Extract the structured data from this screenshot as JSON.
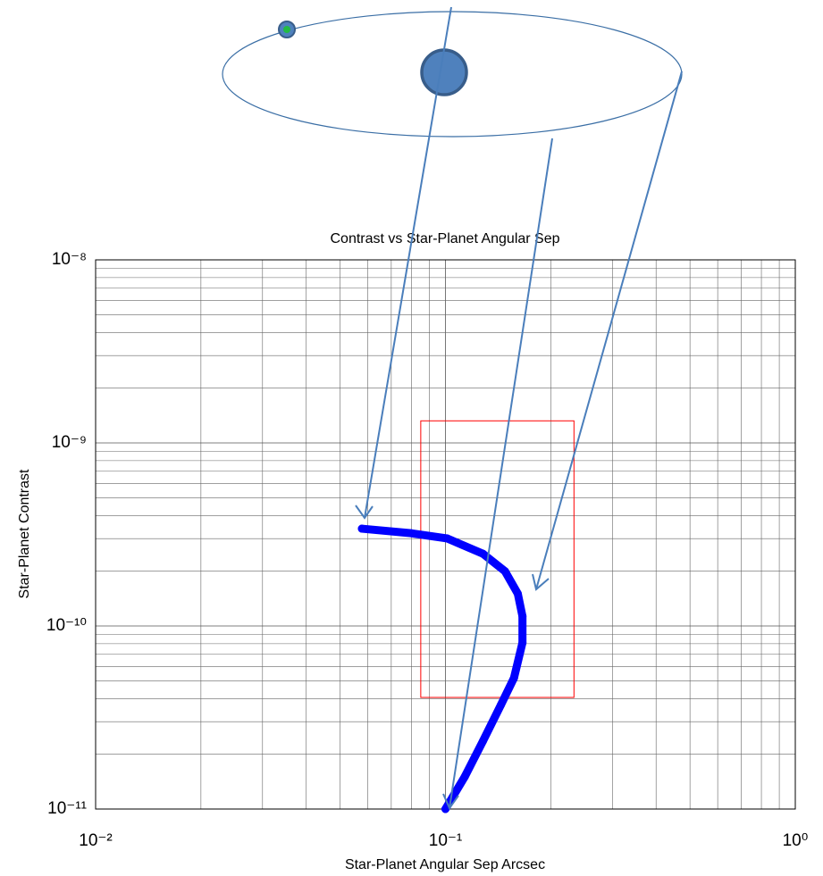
{
  "chart_data": {
    "type": "scatter",
    "title": "Contrast vs Star-Planet Angular Sep",
    "x_label": "Star-Planet Angular Sep Arcsec",
    "y_label": "Star-Planet Contrast",
    "xscale": "log",
    "yscale": "log",
    "xlim": [
      0.01,
      1
    ],
    "ylim": [
      1e-11,
      1e-08
    ],
    "xticks": [
      {
        "value": 0.01,
        "label": "10⁻²"
      },
      {
        "value": 0.1,
        "label": "10⁻¹"
      },
      {
        "value": 1,
        "label": "10⁰"
      }
    ],
    "yticks": [
      {
        "value": 1e-11,
        "label": "10⁻¹¹"
      },
      {
        "value": 1e-10,
        "label": "10⁻¹⁰"
      },
      {
        "value": 1e-09,
        "label": "10⁻⁹"
      },
      {
        "value": 1e-08,
        "label": "10⁻⁸"
      }
    ],
    "grid": true,
    "series": [
      {
        "color": "#0000ff",
        "x": [
          0.0577,
          0.0798,
          0.101,
          0.128,
          0.148,
          0.161,
          0.166,
          0.166,
          0.157,
          0.144,
          0.128,
          0.1135,
          0.1
        ],
        "values": [
          3.4e-10,
          3.21e-10,
          3.01e-10,
          2.48e-10,
          1.99e-10,
          1.5e-10,
          1.13e-10,
          8.1e-11,
          5.2e-11,
          3.7e-11,
          2.35e-11,
          1.5e-11,
          1e-11
        ]
      }
    ],
    "highlight_box": {
      "xlim": [
        0.085,
        0.233
      ],
      "ylim": [
        4.07e-11,
        1.32e-09
      ],
      "color": "#ff0000"
    }
  }
}
